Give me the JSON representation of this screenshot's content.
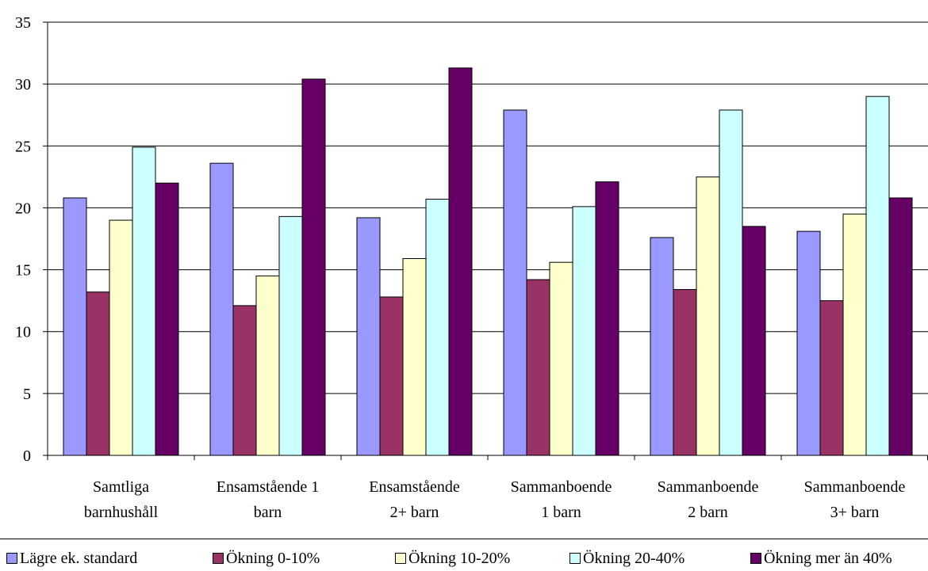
{
  "chart_data": {
    "type": "bar",
    "title": "",
    "xlabel": "",
    "ylabel": "",
    "ylim": [
      0,
      35
    ],
    "yticks": [
      0,
      5,
      10,
      15,
      20,
      25,
      30,
      35
    ],
    "grid": true,
    "legend_position": "bottom",
    "categories": [
      [
        "Samtliga",
        "barnhushåll"
      ],
      [
        "Ensamstående 1",
        "barn"
      ],
      [
        "Ensamstående",
        "2+ barn"
      ],
      [
        "Sammanboende",
        "1 barn"
      ],
      [
        "Sammanboende",
        "2 barn"
      ],
      [
        "Sammanboende",
        "3+ barn"
      ]
    ],
    "series": [
      {
        "name": "Lägre ek. standard",
        "color": "#9999ff",
        "values": [
          20.8,
          23.6,
          19.2,
          27.9,
          17.6,
          18.1
        ]
      },
      {
        "name": "Ökning 0-10%",
        "color": "#993366",
        "values": [
          13.2,
          12.1,
          12.8,
          14.2,
          13.4,
          12.5
        ]
      },
      {
        "name": "Ökning 10-20%",
        "color": "#ffffcc",
        "values": [
          19.0,
          14.5,
          15.9,
          15.6,
          22.5,
          19.5
        ]
      },
      {
        "name": "Ökning 20-40%",
        "color": "#ccffff",
        "values": [
          24.9,
          19.3,
          20.7,
          20.1,
          27.9,
          29.0
        ]
      },
      {
        "name": "Ökning mer än 40%",
        "color": "#660066",
        "values": [
          22.0,
          30.4,
          31.3,
          22.1,
          18.5,
          20.8
        ]
      }
    ]
  }
}
